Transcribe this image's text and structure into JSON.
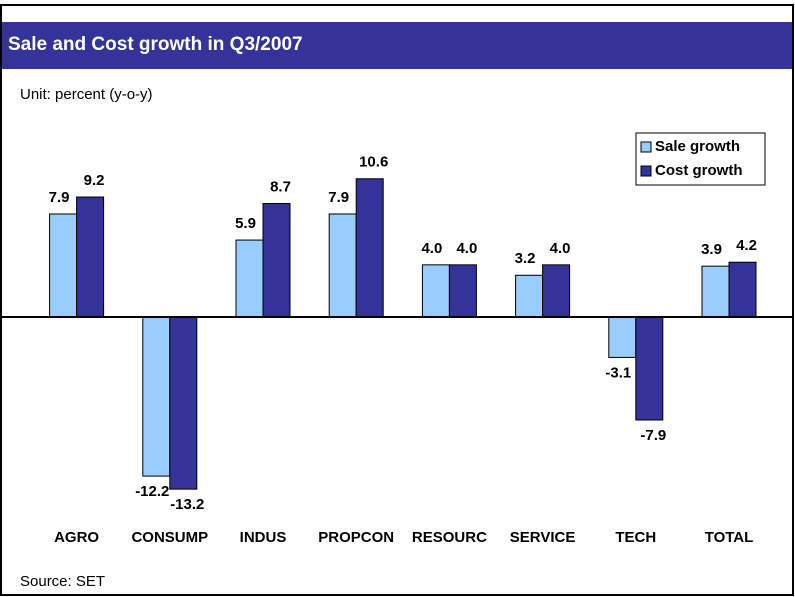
{
  "chart_data": {
    "type": "bar",
    "title": "Sale and Cost growth in Q3/2007",
    "subtitle": "Unit: percent (y-o-y)",
    "source": "Source: SET",
    "categories": [
      "AGRO",
      "CONSUMP",
      "INDUS",
      "PROPCON",
      "RESOURC",
      "SERVICE",
      "TECH",
      "TOTAL"
    ],
    "series": [
      {
        "name": "Sale growth",
        "color": "#99ccff",
        "values": [
          7.9,
          -12.2,
          5.9,
          7.9,
          4.0,
          3.2,
          -3.1,
          3.9
        ],
        "value_labels": [
          "7.9",
          "-12.2",
          "5.9",
          "7.9",
          "4.0",
          "3.2",
          "-3.1",
          "3.9"
        ]
      },
      {
        "name": "Cost growth",
        "color": "#333399",
        "values": [
          9.2,
          -13.2,
          8.7,
          10.6,
          4.0,
          4.0,
          -7.9,
          4.2
        ],
        "value_labels": [
          "9.2",
          "-13.2",
          "8.7",
          "10.6",
          "4.0",
          "4.0",
          "-7.9",
          "4.2"
        ]
      }
    ],
    "legend": "upper right"
  }
}
